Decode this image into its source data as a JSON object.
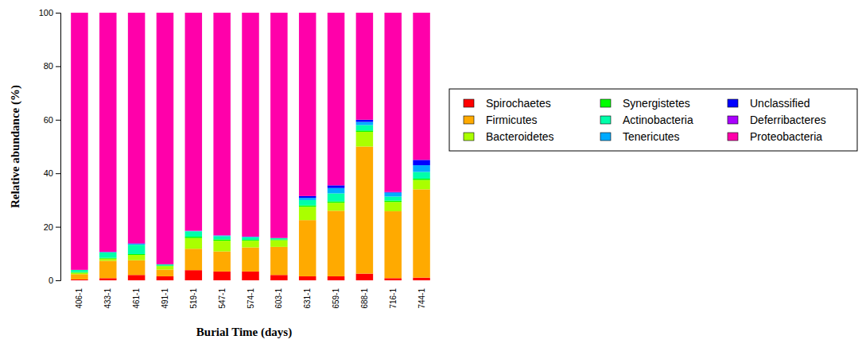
{
  "chart_data": {
    "type": "bar",
    "stacked": true,
    "legend": "right",
    "x_label": "Burial Time (days)",
    "y_label": "Relative abundance (%)",
    "categories": [
      "406-1",
      "433-1",
      "461-1",
      "491-1",
      "519-1",
      "547-1",
      "574-1",
      "603-1",
      "631-1",
      "659-1",
      "688-1",
      "716-1",
      "744-1"
    ],
    "ylim": [
      0,
      100
    ],
    "yticks": [
      0,
      20,
      40,
      60,
      80,
      100
    ],
    "series": [
      {
        "name": "Spirochaetes",
        "color": "#FF0000",
        "values": [
          0.3,
          0.8,
          2,
          1.5,
          3.8,
          3.3,
          3.3,
          2,
          1.5,
          1.5,
          2.5,
          0.8,
          1
        ]
      },
      {
        "name": "Firmicutes",
        "color": "#FFAA00",
        "values": [
          2,
          6.5,
          5.5,
          2.5,
          8,
          7.5,
          9,
          10.5,
          21,
          24.5,
          47.5,
          25,
          33
        ]
      },
      {
        "name": "Bacteroidetes",
        "color": "#AAFF00",
        "values": [
          0.5,
          0.8,
          2,
          1.3,
          4,
          4,
          2.5,
          2.5,
          5,
          3,
          5.5,
          3.5,
          3.5
        ]
      },
      {
        "name": "Synergistetes",
        "color": "#00FF00",
        "values": [
          0.3,
          0.3,
          0.3,
          0.2,
          0.5,
          0.5,
          0.3,
          0.3,
          0.5,
          0.5,
          0.5,
          0.5,
          0.5
        ]
      },
      {
        "name": "Actinobacteria",
        "color": "#00FFAA",
        "values": [
          0.8,
          2,
          3.5,
          0.5,
          2,
          1.2,
          1,
          0.5,
          2,
          3,
          2,
          1.5,
          2.5
        ]
      },
      {
        "name": "Tenericutes",
        "color": "#00AAFF",
        "values": [
          0,
          0.2,
          0.3,
          0,
          0.2,
          0.3,
          0.2,
          0,
          0.8,
          2,
          1.2,
          1.5,
          2.5
        ]
      },
      {
        "name": "Unclassified",
        "color": "#0000FF",
        "values": [
          0,
          0,
          0.2,
          0,
          0,
          0,
          0,
          0,
          0.7,
          1,
          0.8,
          0.2,
          2
        ]
      },
      {
        "name": "Deferribacteres",
        "color": "#AA00FF",
        "values": [
          0,
          0,
          0,
          0,
          0,
          0,
          0,
          0,
          0,
          0,
          0,
          0,
          0
        ]
      },
      {
        "name": "Proteobacteria",
        "color": "#FF00AA",
        "values": [
          96.1,
          89.4,
          86.2,
          94,
          81.5,
          83.2,
          83.7,
          84.2,
          68.5,
          64.5,
          40,
          67,
          55
        ]
      }
    ]
  }
}
